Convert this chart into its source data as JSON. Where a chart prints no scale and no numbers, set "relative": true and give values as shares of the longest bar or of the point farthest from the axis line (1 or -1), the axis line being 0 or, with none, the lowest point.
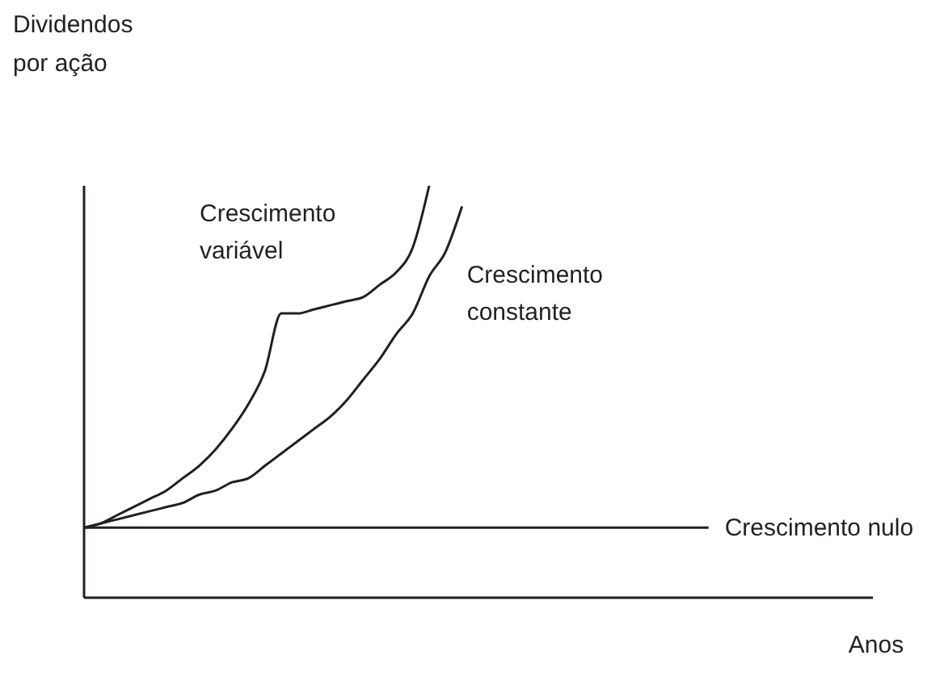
{
  "chart_data": {
    "type": "line",
    "relative": true,
    "xlabel": "Anos",
    "ylabel": "Dividendos por ação",
    "legend": false,
    "grid": false,
    "marker": "none",
    "line_style": "solid",
    "categories": [
      null,
      null,
      null,
      null,
      null,
      null,
      null,
      null,
      null,
      null,
      null,
      null,
      null,
      null,
      null,
      null,
      null,
      null,
      null,
      null,
      null,
      null,
      null,
      null,
      null,
      null,
      null,
      null,
      null,
      null,
      null,
      null,
      null,
      null,
      null,
      null,
      null,
      null,
      null,
      null,
      null,
      null,
      null,
      null,
      null,
      null,
      null,
      null,
      null
    ],
    "series": [
      {
        "name": "Crescimento variável",
        "color": "#231f20",
        "values": [
          0.17,
          0.18,
          0.2,
          0.22,
          0.24,
          0.26,
          0.29,
          0.32,
          0.36,
          0.41,
          0.47,
          0.55,
          0.69,
          0.69,
          0.7,
          0.71,
          0.72,
          0.73,
          0.76,
          0.79,
          0.85,
          1,
          null,
          null,
          null,
          null,
          null,
          null,
          null,
          null,
          null,
          null,
          null,
          null,
          null,
          null,
          null,
          null,
          null,
          null,
          null,
          null,
          null,
          null,
          null,
          null,
          null,
          null,
          null
        ]
      },
      {
        "name": "Crescimento constante",
        "color": "#231f20",
        "values": [
          0.17,
          0.18,
          0.19,
          0.2,
          0.21,
          0.22,
          0.23,
          0.25,
          0.26,
          0.28,
          0.29,
          0.32,
          0.35,
          0.38,
          0.41,
          0.44,
          0.48,
          0.53,
          0.58,
          0.64,
          0.69,
          0.78,
          0.84,
          0.95,
          null,
          null,
          null,
          null,
          null,
          null,
          null,
          null,
          null,
          null,
          null,
          null,
          null,
          null,
          null,
          null,
          null,
          null,
          null,
          null,
          null,
          null,
          null,
          null,
          null
        ]
      },
      {
        "name": "Crescimento nulo",
        "color": "#231f20",
        "values": [
          0.17,
          0.17,
          0.17,
          0.17,
          0.17,
          0.17,
          0.17,
          0.17,
          0.17,
          0.17,
          0.17,
          0.17,
          0.17,
          0.17,
          0.17,
          0.17,
          0.17,
          0.17,
          0.17,
          0.17,
          0.17,
          0.17,
          0.17,
          0.17,
          0.17,
          0.17,
          0.17,
          0.17,
          0.17,
          0.17,
          0.17,
          0.17,
          0.17,
          0.17,
          0.17,
          0.17,
          0.17,
          0.17,
          0.17,
          null,
          null,
          null,
          null,
          null,
          null,
          null,
          null,
          null,
          null
        ]
      }
    ]
  }
}
